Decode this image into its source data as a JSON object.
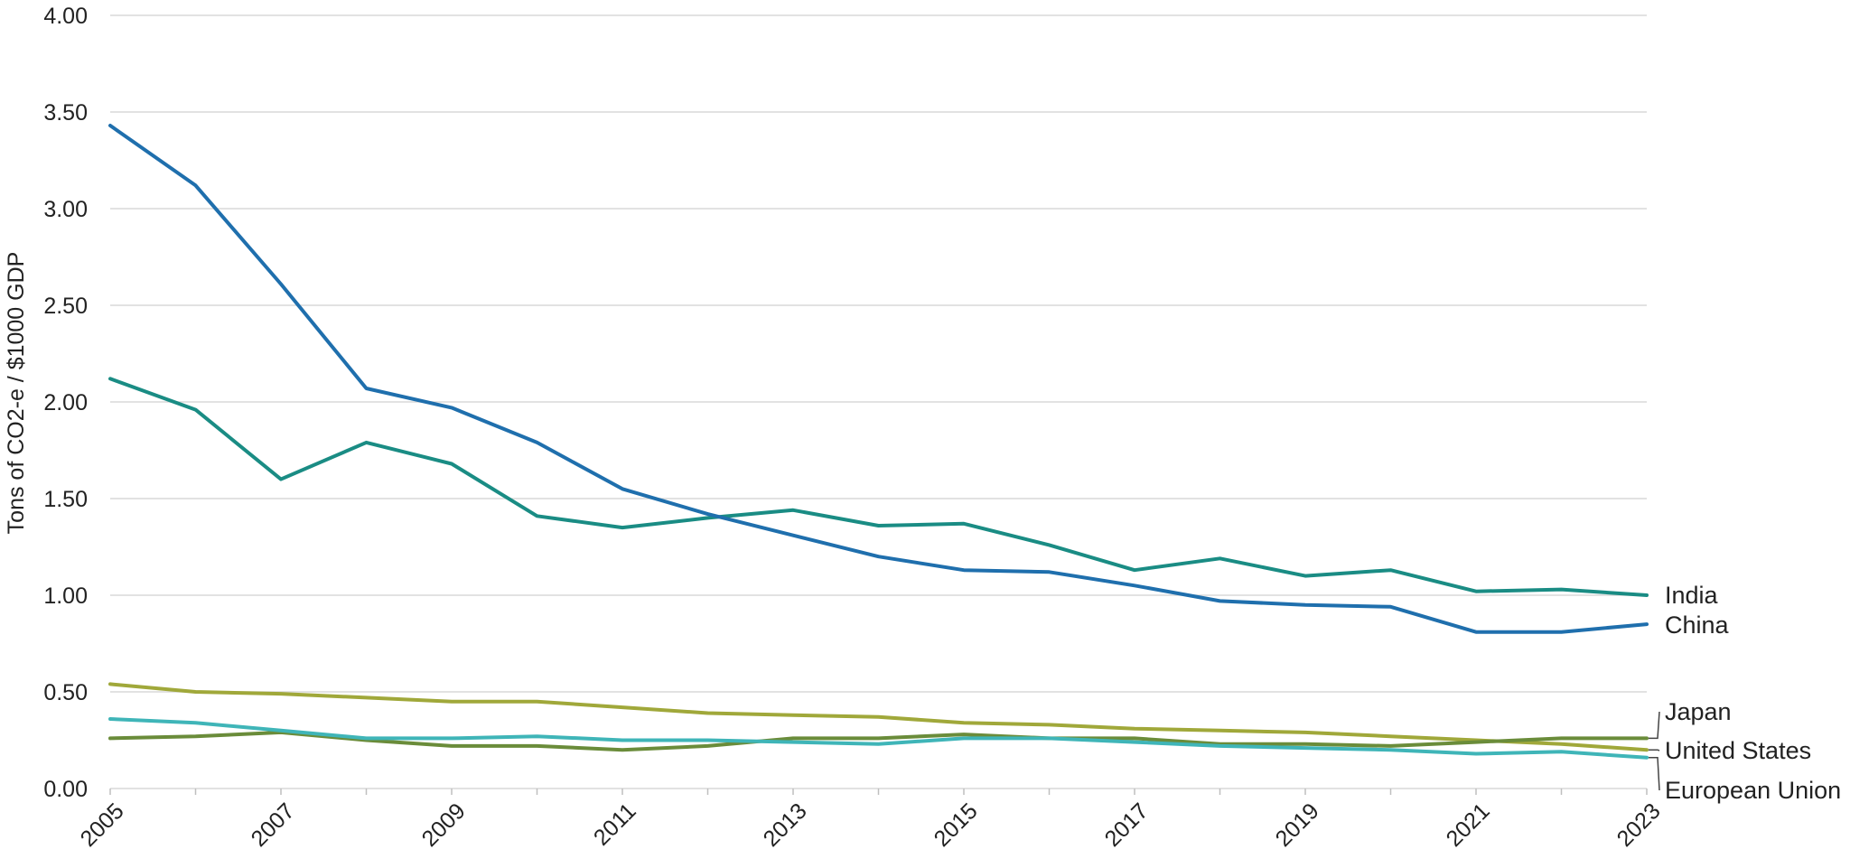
{
  "chart_data": {
    "type": "line",
    "title": "",
    "xlabel": "",
    "ylabel": "Tons of CO2-e / $1000 GDP",
    "ylim": [
      0,
      4
    ],
    "yticks": [
      "0.00",
      "0.50",
      "1.00",
      "1.50",
      "2.00",
      "2.50",
      "3.00",
      "3.50",
      "4.00"
    ],
    "xticks": [
      "2005",
      "2007",
      "2009",
      "2011",
      "2013",
      "2015",
      "2017",
      "2019",
      "2021",
      "2023"
    ],
    "x": [
      2005,
      2006,
      2007,
      2008,
      2009,
      2010,
      2011,
      2012,
      2013,
      2014,
      2015,
      2016,
      2017,
      2018,
      2019,
      2020,
      2021,
      2022,
      2023
    ],
    "grid": true,
    "legend": "direct labels at right end of lines",
    "series": [
      {
        "name": "China",
        "color": "#1f6fad",
        "values": [
          3.43,
          3.12,
          2.61,
          2.07,
          1.97,
          1.79,
          1.55,
          1.42,
          1.31,
          1.2,
          1.13,
          1.12,
          1.05,
          0.97,
          0.95,
          0.94,
          0.81,
          0.81,
          0.85
        ]
      },
      {
        "name": "India",
        "color": "#1a8c84",
        "values": [
          2.12,
          1.96,
          1.6,
          1.79,
          1.68,
          1.41,
          1.35,
          1.4,
          1.44,
          1.36,
          1.37,
          1.26,
          1.13,
          1.19,
          1.1,
          1.13,
          1.02,
          1.03,
          1.0
        ]
      },
      {
        "name": "United States",
        "color": "#a0a83a",
        "values": [
          0.54,
          0.5,
          0.49,
          0.47,
          0.45,
          0.45,
          0.42,
          0.39,
          0.38,
          0.37,
          0.34,
          0.33,
          0.31,
          0.3,
          0.29,
          0.27,
          0.25,
          0.23,
          0.2
        ]
      },
      {
        "name": "Japan",
        "color": "#6a8c3a",
        "values": [
          0.26,
          0.27,
          0.29,
          0.25,
          0.22,
          0.22,
          0.2,
          0.22,
          0.26,
          0.26,
          0.28,
          0.26,
          0.26,
          0.23,
          0.23,
          0.22,
          0.24,
          0.26,
          0.26
        ]
      },
      {
        "name": "European Union",
        "color": "#3fb5b8",
        "values": [
          0.36,
          0.34,
          0.3,
          0.26,
          0.26,
          0.27,
          0.25,
          0.25,
          0.24,
          0.23,
          0.26,
          0.26,
          0.24,
          0.22,
          0.21,
          0.2,
          0.18,
          0.19,
          0.16
        ]
      }
    ]
  }
}
